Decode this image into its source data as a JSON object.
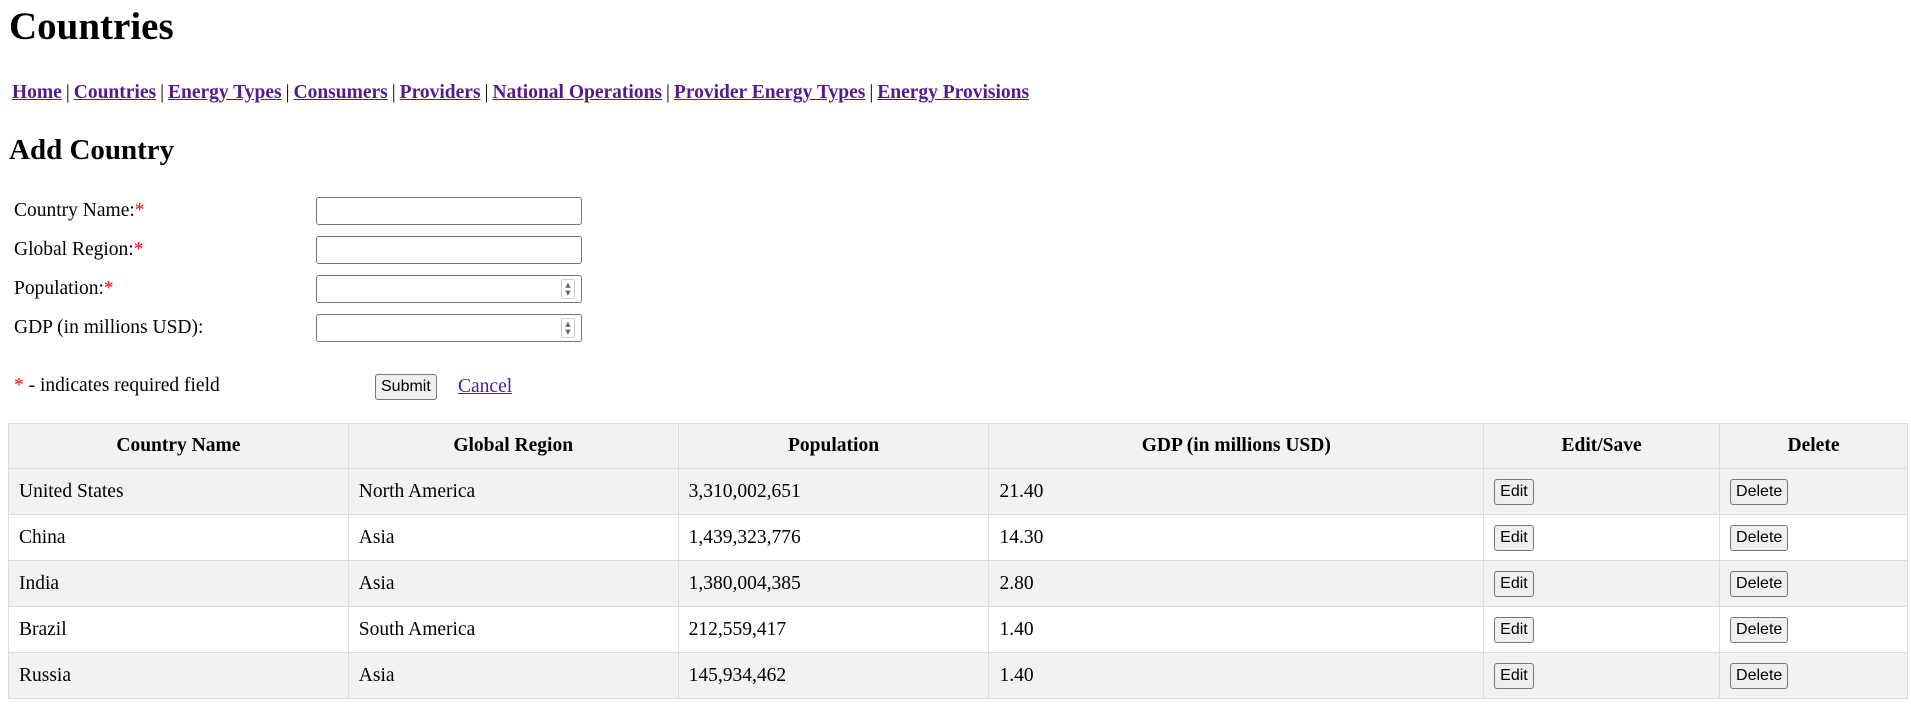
{
  "page": {
    "title": "Countries"
  },
  "nav": {
    "items": [
      {
        "label": "Home"
      },
      {
        "label": "Countries"
      },
      {
        "label": "Energy Types"
      },
      {
        "label": "Consumers"
      },
      {
        "label": "Providers"
      },
      {
        "label": "National Operations"
      },
      {
        "label": "Provider Energy Types"
      },
      {
        "label": "Energy Provisions"
      }
    ],
    "separator": "|"
  },
  "form": {
    "title": "Add Country",
    "required_marker": "*",
    "fields": [
      {
        "label": "Country Name:",
        "required": true,
        "value": "",
        "type": "text"
      },
      {
        "label": "Global Region:",
        "required": true,
        "value": "",
        "type": "text"
      },
      {
        "label": "Population:",
        "required": true,
        "value": "",
        "type": "number"
      },
      {
        "label": "GDP (in millions USD):",
        "required": false,
        "value": "",
        "type": "number"
      }
    ],
    "required_note": " - indicates required field",
    "submit_label": "Submit",
    "cancel_label": "Cancel"
  },
  "table": {
    "headers": [
      "Country Name",
      "Global Region",
      "Population",
      "GDP (in millions USD)",
      "Edit/Save",
      "Delete"
    ],
    "rows": [
      {
        "name": "United States",
        "region": "North America",
        "population": "3,310,002,651",
        "gdp": "21.40",
        "edit_label": "Edit",
        "delete_label": "Delete"
      },
      {
        "name": "China",
        "region": "Asia",
        "population": "1,439,323,776",
        "gdp": "14.30",
        "edit_label": "Edit",
        "delete_label": "Delete"
      },
      {
        "name": "India",
        "region": "Asia",
        "population": "1,380,004,385",
        "gdp": "2.80",
        "edit_label": "Edit",
        "delete_label": "Delete"
      },
      {
        "name": "Brazil",
        "region": "South America",
        "population": "212,559,417",
        "gdp": "1.40",
        "edit_label": "Edit",
        "delete_label": "Delete"
      },
      {
        "name": "Russia",
        "region": "Asia",
        "population": "145,934,462",
        "gdp": "1.40",
        "edit_label": "Edit",
        "delete_label": "Delete"
      }
    ]
  },
  "colors": {
    "link": "#551a8b",
    "required": "#ff0000",
    "row_alt": "#f2f2f2",
    "border": "#dddddd"
  }
}
